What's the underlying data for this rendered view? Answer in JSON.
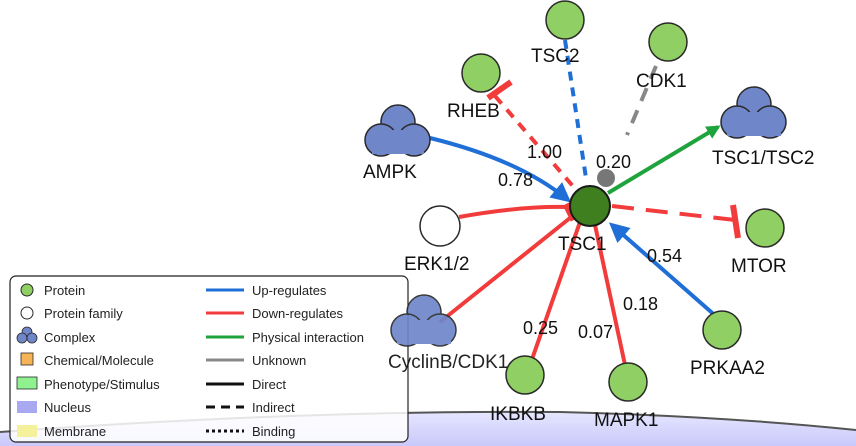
{
  "colors": {
    "protein": "#8fcf63",
    "protein_stroke": "#2a2a2a",
    "focus": "#3f7f1f",
    "complex": "#6f86c9",
    "upregulates": "#1f6fd6",
    "downregulates": "#f23c3c",
    "physical": "#1fa33c",
    "unknown": "#888888",
    "nucleus": "#a9a9f2",
    "membrane": "#f5f09a",
    "chemical": "#f5b455",
    "phenotype": "#8ff28f"
  },
  "nodes": {
    "tsc2": {
      "label": "TSC2",
      "type": "protein"
    },
    "cdk1": {
      "label": "CDK1",
      "type": "protein"
    },
    "rheb": {
      "label": "RHEB",
      "type": "protein"
    },
    "ampk": {
      "label": "AMPK",
      "type": "complex"
    },
    "tsc1tsc2": {
      "label": "TSC1/TSC2",
      "type": "complex"
    },
    "tsc1": {
      "label": "TSC1",
      "type": "focus"
    },
    "erk12": {
      "label": "ERK1/2",
      "type": "protein-family"
    },
    "mtor": {
      "label": "MTOR",
      "type": "protein"
    },
    "cyclinb": {
      "label": "CyclinB/CDK1",
      "type": "complex"
    },
    "ikbkb": {
      "label": "IKBKB",
      "type": "protein"
    },
    "mapk1": {
      "label": "MAPK1",
      "type": "protein"
    },
    "prkaa2": {
      "label": "PRKAA2",
      "type": "protein"
    }
  },
  "edge_labels": {
    "rheb": "1.00",
    "cdk1": "0.20",
    "ampk": "0.78",
    "prkaa2_a": "0.54",
    "prkaa2_b": "0.18",
    "ikbkb": "0.25",
    "mapk1": "0.07"
  },
  "legend": {
    "left": [
      {
        "label": "Protein",
        "icon": "protein-icon"
      },
      {
        "label": "Protein family",
        "icon": "protein-family-icon"
      },
      {
        "label": "Complex",
        "icon": "complex-icon"
      },
      {
        "label": "Chemical/Molecule",
        "icon": "chemical-icon"
      },
      {
        "label": "Phenotype/Stimulus",
        "icon": "phenotype-icon"
      },
      {
        "label": "Nucleus",
        "icon": "nucleus-icon"
      },
      {
        "label": "Membrane",
        "icon": "membrane-icon"
      }
    ],
    "right": [
      {
        "label": "Up-regulates",
        "icon": "up-regulates-line"
      },
      {
        "label": "Down-regulates",
        "icon": "down-regulates-line"
      },
      {
        "label": "Physical interaction",
        "icon": "physical-interaction-line"
      },
      {
        "label": "Unknown",
        "icon": "unknown-line"
      },
      {
        "label": "Direct",
        "icon": "direct-line"
      },
      {
        "label": "Indirect",
        "icon": "indirect-line"
      },
      {
        "label": "Binding",
        "icon": "binding-line"
      }
    ]
  }
}
